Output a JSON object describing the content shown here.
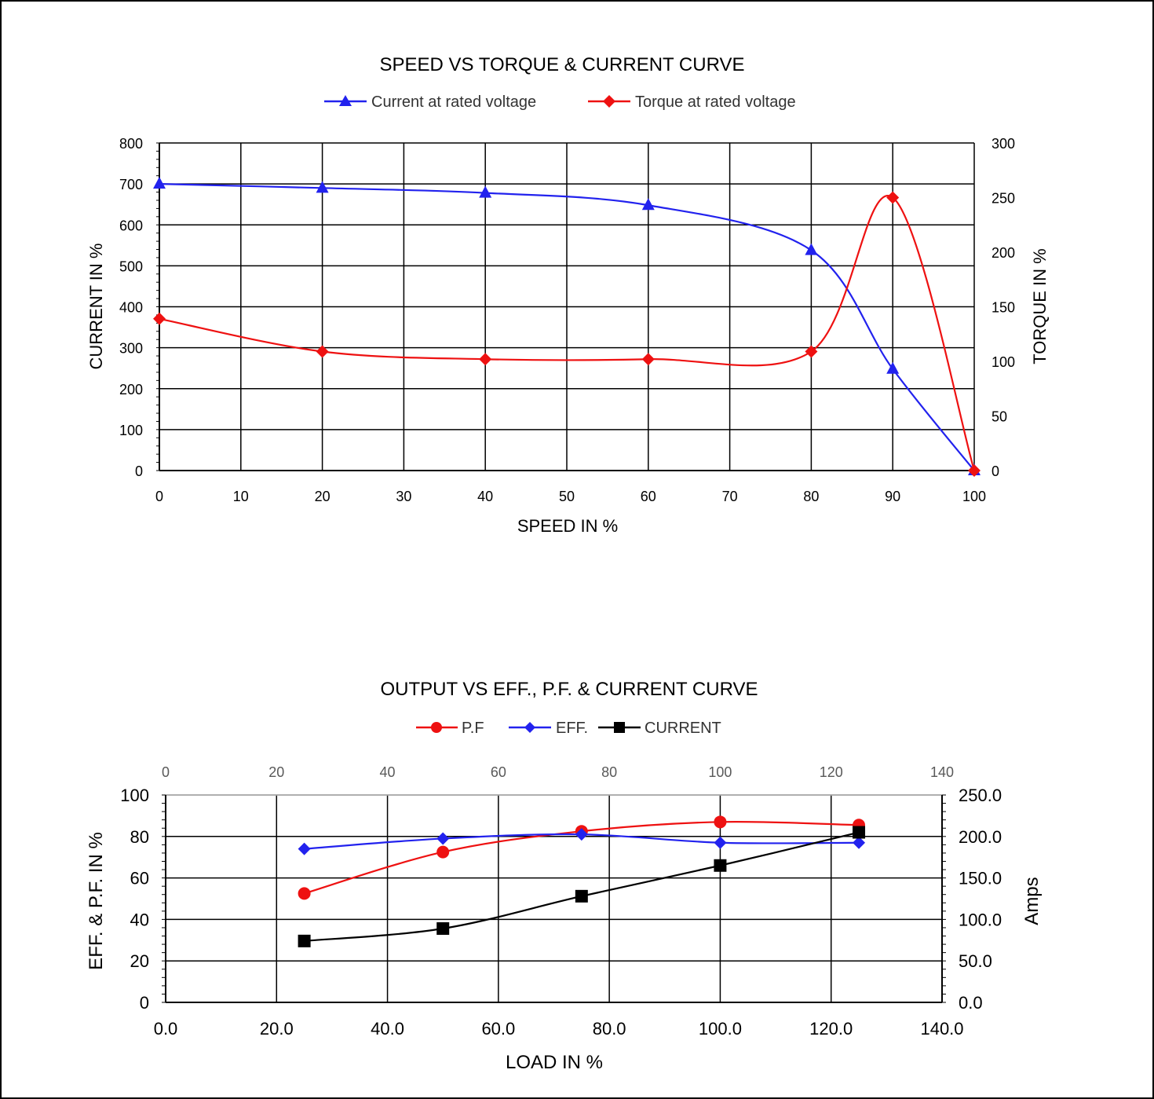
{
  "colors": {
    "blue": "#2222ee",
    "red": "#ee1111",
    "black": "#000000"
  },
  "chart_data": [
    {
      "type": "line",
      "title": "SPEED VS TORQUE & CURRENT CURVE",
      "xlabel": "SPEED IN %",
      "ylabel": "CURRENT IN %",
      "y2label": "TORQUE IN %",
      "xlim": [
        0,
        100
      ],
      "ylim": [
        0,
        800
      ],
      "y2lim": [
        0,
        300
      ],
      "x_ticks": [
        "0",
        "10",
        "20",
        "30",
        "40",
        "50",
        "60",
        "70",
        "80",
        "90",
        "100"
      ],
      "y_ticks": [
        "0",
        "100",
        "200",
        "300",
        "400",
        "500",
        "600",
        "700",
        "800"
      ],
      "y2_ticks": [
        "0",
        "50",
        "100",
        "150",
        "200",
        "250",
        "300"
      ],
      "grid": true,
      "legend_position": "top",
      "series": [
        {
          "name": "Current at rated voltage",
          "axis": "y",
          "marker": "triangle",
          "color": "#2222ee",
          "x": [
            0,
            20,
            40,
            60,
            80,
            90,
            100
          ],
          "values": [
            700,
            690,
            678,
            648,
            538,
            248,
            0
          ]
        },
        {
          "name": "Torque at rated voltage",
          "axis": "y2",
          "marker": "diamond",
          "color": "#ee1111",
          "x": [
            0,
            20,
            40,
            60,
            80,
            90,
            100
          ],
          "values": [
            139,
            109,
            102,
            102,
            109,
            250,
            0
          ]
        }
      ]
    },
    {
      "type": "line",
      "title": "OUTPUT VS EFF., P.F. & CURRENT CURVE",
      "xlabel": "LOAD IN %",
      "ylabel": "EFF. & P.F. IN %",
      "y2label": "Amps",
      "xlim": [
        0,
        140
      ],
      "ylim": [
        0,
        100
      ],
      "y2lim": [
        0,
        250
      ],
      "x_ticks": [
        "0.0",
        "20.0",
        "40.0",
        "60.0",
        "80.0",
        "100.0",
        "120.0",
        "140.0"
      ],
      "x2_ticks": [
        "0",
        "20",
        "40",
        "60",
        "80",
        "100",
        "120",
        "140"
      ],
      "y_ticks": [
        "0",
        "20",
        "40",
        "60",
        "80",
        "100"
      ],
      "y2_ticks": [
        "0.0",
        "50.0",
        "100.0",
        "150.0",
        "200.0",
        "250.0"
      ],
      "grid": true,
      "legend_position": "top",
      "series": [
        {
          "name": "P.F",
          "axis": "y",
          "marker": "circle",
          "color": "#ee1111",
          "x": [
            25,
            50,
            75,
            100,
            125
          ],
          "values": [
            52.5,
            72.5,
            82.5,
            87,
            85.5
          ]
        },
        {
          "name": "EFF.",
          "axis": "y",
          "marker": "diamond",
          "color": "#2222ee",
          "x": [
            25,
            50,
            75,
            100,
            125
          ],
          "values": [
            74,
            79,
            81,
            77,
            77
          ]
        },
        {
          "name": "CURRENT",
          "axis": "y2",
          "marker": "square",
          "color": "#000000",
          "x": [
            25,
            50,
            75,
            100,
            125
          ],
          "values": [
            74,
            89,
            128,
            165,
            205
          ]
        }
      ]
    }
  ]
}
